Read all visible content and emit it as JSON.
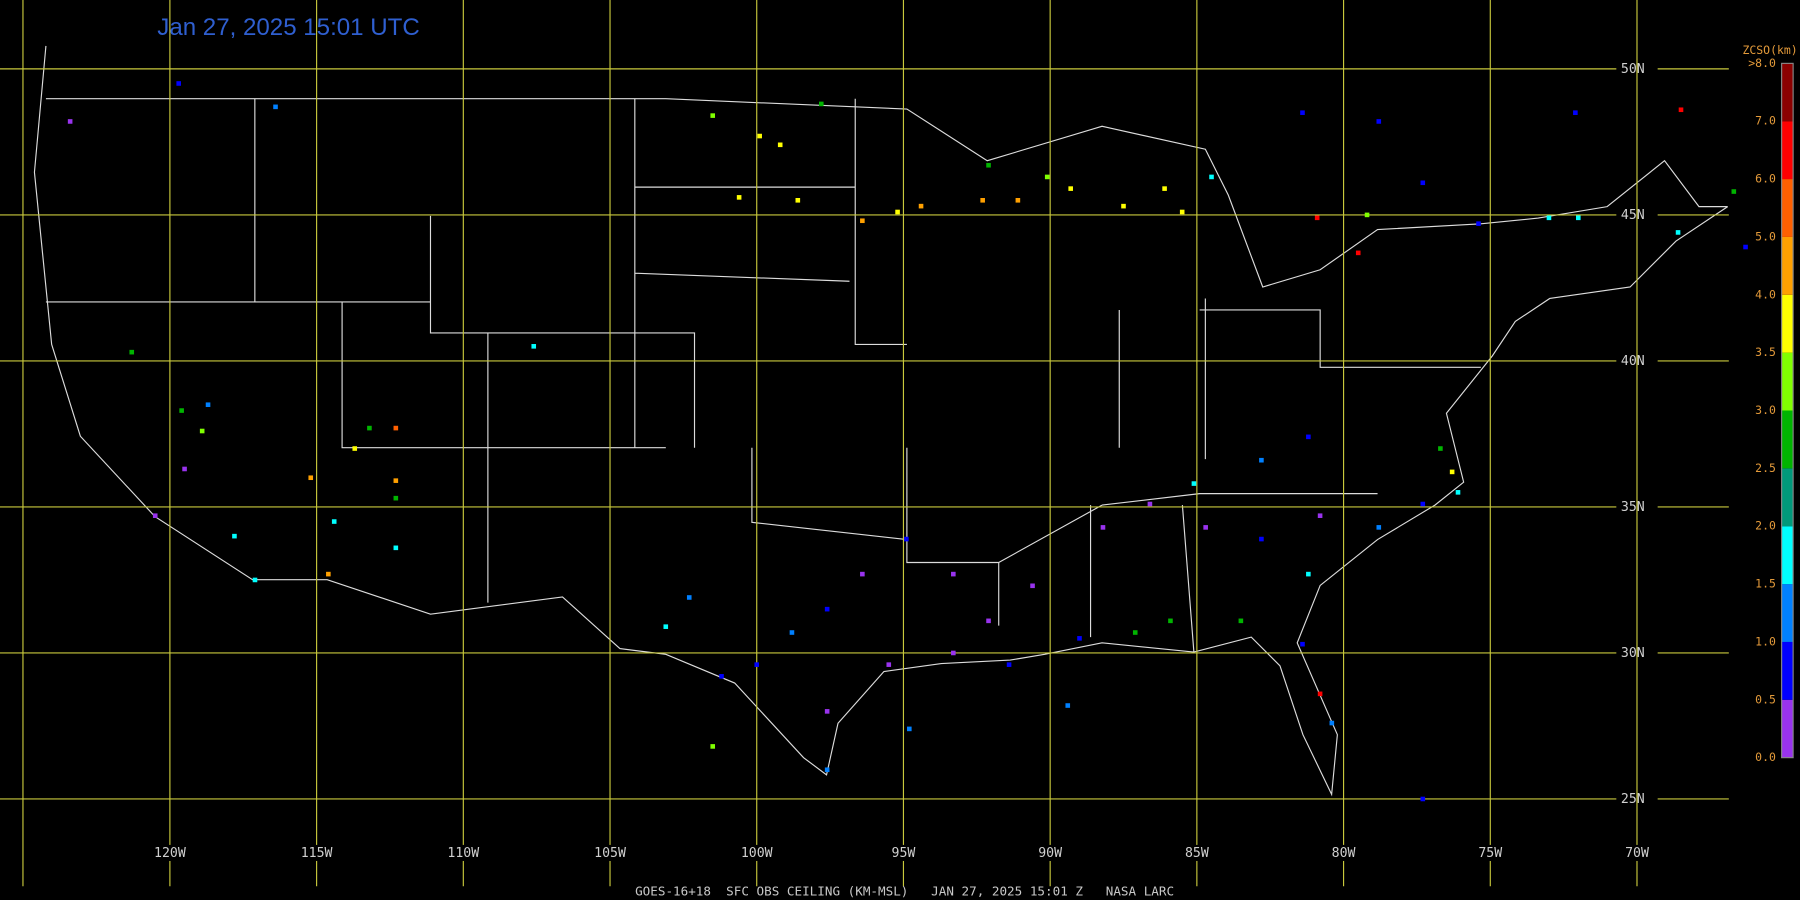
{
  "title": "Jan 27, 2025 15:01 UTC",
  "footer": "GOES-16+18  SFC OBS CEILING (KM-MSL)   JAN 27, 2025 15:01 Z   NASA LARC",
  "grid": {
    "lat_ticks": [
      {
        "value": 50,
        "label": "50N"
      },
      {
        "value": 45,
        "label": "45N"
      },
      {
        "value": 40,
        "label": "40N"
      },
      {
        "value": 35,
        "label": "35N"
      },
      {
        "value": 30,
        "label": "30N"
      },
      {
        "value": 25,
        "label": "25N"
      }
    ],
    "lon_ticks": [
      {
        "value": -120,
        "label": "120W"
      },
      {
        "value": -115,
        "label": "115W"
      },
      {
        "value": -110,
        "label": "110W"
      },
      {
        "value": -105,
        "label": "105W"
      },
      {
        "value": -100,
        "label": "100W"
      },
      {
        "value": -95,
        "label": "95W"
      },
      {
        "value": -90,
        "label": "90W"
      },
      {
        "value": -85,
        "label": "85W"
      },
      {
        "value": -80,
        "label": "80W"
      },
      {
        "value": -75,
        "label": "75W"
      },
      {
        "value": -70,
        "label": "70W"
      }
    ],
    "color": "#c8c83c"
  },
  "colorbar": {
    "title": "ZCSO(km)",
    "levels": [
      {
        "value": 0,
        "label": "0.0"
      },
      {
        "value": 0.5,
        "label": "0.5"
      },
      {
        "value": 1,
        "label": "1.0"
      },
      {
        "value": 1.5,
        "label": "1.5"
      },
      {
        "value": 2,
        "label": "2.0"
      },
      {
        "value": 2.5,
        "label": "2.5"
      },
      {
        "value": 3,
        "label": "3.0"
      },
      {
        "value": 3.5,
        "label": "3.5"
      },
      {
        "value": 4,
        "label": "4.0"
      },
      {
        "value": 5,
        "label": "5.0"
      },
      {
        "value": 6,
        "label": "6.0"
      },
      {
        "value": 7,
        "label": "7.0"
      },
      {
        "value": 8,
        "label": ">8.0"
      }
    ],
    "colors": [
      "#9933ee",
      "#0000ff",
      "#0080ff",
      "#00ffff",
      "#00997a",
      "#00b400",
      "#80ff00",
      "#ffff00",
      "#ffa000",
      "#ff6000",
      "#ff0000",
      "#8b0000"
    ]
  },
  "stations": [
    {
      "lon": -119.7,
      "lat": 49.5,
      "ceiling_km": 0.7
    },
    {
      "lon": -116.4,
      "lat": 48.7,
      "ceiling_km": 1.2
    },
    {
      "lon": -123.4,
      "lat": 48.2,
      "ceiling_km": 0.3
    },
    {
      "lon": -121.3,
      "lat": 40.3,
      "ceiling_km": 2.7
    },
    {
      "lon": -107.6,
      "lat": 40.5,
      "ceiling_km": 1.7
    },
    {
      "lon": -118.7,
      "lat": 38.5,
      "ceiling_km": 1.2
    },
    {
      "lon": -119.6,
      "lat": 38.3,
      "ceiling_km": 2.7
    },
    {
      "lon": -118.9,
      "lat": 37.6,
      "ceiling_km": 3.2
    },
    {
      "lon": -119.5,
      "lat": 36.3,
      "ceiling_km": 0.3
    },
    {
      "lon": -120.5,
      "lat": 34.7,
      "ceiling_km": 0.3
    },
    {
      "lon": -117.8,
      "lat": 34.0,
      "ceiling_km": 1.7
    },
    {
      "lon": -117.1,
      "lat": 32.5,
      "ceiling_km": 1.7
    },
    {
      "lon": -114.6,
      "lat": 32.7,
      "ceiling_km": 4.5
    },
    {
      "lon": -115.2,
      "lat": 36.0,
      "ceiling_km": 4.5
    },
    {
      "lon": -112.3,
      "lat": 37.7,
      "ceiling_km": 5.5
    },
    {
      "lon": -113.2,
      "lat": 37.7,
      "ceiling_km": 2.7
    },
    {
      "lon": -113.7,
      "lat": 37.0,
      "ceiling_km": 3.7
    },
    {
      "lon": -112.3,
      "lat": 35.9,
      "ceiling_km": 4.5
    },
    {
      "lon": -112.3,
      "lat": 35.3,
      "ceiling_km": 2.7
    },
    {
      "lon": -112.3,
      "lat": 33.6,
      "ceiling_km": 1.7
    },
    {
      "lon": -114.4,
      "lat": 34.5,
      "ceiling_km": 1.7
    },
    {
      "lon": -101.5,
      "lat": 48.4,
      "ceiling_km": 3.2
    },
    {
      "lon": -99.9,
      "lat": 47.7,
      "ceiling_km": 3.7
    },
    {
      "lon": -99.2,
      "lat": 47.4,
      "ceiling_km": 3.7
    },
    {
      "lon": -97.8,
      "lat": 48.8,
      "ceiling_km": 2.7
    },
    {
      "lon": -100.6,
      "lat": 45.6,
      "ceiling_km": 3.7
    },
    {
      "lon": -98.6,
      "lat": 45.5,
      "ceiling_km": 3.7
    },
    {
      "lon": -96.4,
      "lat": 44.8,
      "ceiling_km": 4.5
    },
    {
      "lon": -95.2,
      "lat": 45.1,
      "ceiling_km": 3.7
    },
    {
      "lon": -94.4,
      "lat": 45.3,
      "ceiling_km": 4.5
    },
    {
      "lon": -92.3,
      "lat": 45.5,
      "ceiling_km": 4.5
    },
    {
      "lon": -91.1,
      "lat": 45.5,
      "ceiling_km": 4.5
    },
    {
      "lon": -92.1,
      "lat": 46.7,
      "ceiling_km": 2.7
    },
    {
      "lon": -90.1,
      "lat": 46.3,
      "ceiling_km": 3.2
    },
    {
      "lon": -89.3,
      "lat": 45.9,
      "ceiling_km": 3.7
    },
    {
      "lon": -87.5,
      "lat": 45.3,
      "ceiling_km": 3.7
    },
    {
      "lon": -86.1,
      "lat": 45.9,
      "ceiling_km": 3.7
    },
    {
      "lon": -84.5,
      "lat": 46.3,
      "ceiling_km": 1.7
    },
    {
      "lon": -85.5,
      "lat": 45.1,
      "ceiling_km": 3.7
    },
    {
      "lon": -80.9,
      "lat": 44.9,
      "ceiling_km": 6.5
    },
    {
      "lon": -79.5,
      "lat": 43.7,
      "ceiling_km": 6.5
    },
    {
      "lon": -79.2,
      "lat": 45.0,
      "ceiling_km": 3.2
    },
    {
      "lon": -77.3,
      "lat": 46.1,
      "ceiling_km": 0.7
    },
    {
      "lon": -75.4,
      "lat": 44.7,
      "ceiling_km": 0.7
    },
    {
      "lon": -73.0,
      "lat": 44.9,
      "ceiling_km": 1.7
    },
    {
      "lon": -72.0,
      "lat": 44.9,
      "ceiling_km": 1.7
    },
    {
      "lon": -68.5,
      "lat": 48.6,
      "ceiling_km": 6.5
    },
    {
      "lon": -66.7,
      "lat": 45.8,
      "ceiling_km": 2.7
    },
    {
      "lon": -68.6,
      "lat": 44.4,
      "ceiling_km": 1.7
    },
    {
      "lon": -81.4,
      "lat": 48.5,
      "ceiling_km": 0.7
    },
    {
      "lon": -78.8,
      "lat": 48.2,
      "ceiling_km": 0.7
    },
    {
      "lon": -72.1,
      "lat": 48.5,
      "ceiling_km": 0.7
    },
    {
      "lon": -76.7,
      "lat": 37.0,
      "ceiling_km": 2.7
    },
    {
      "lon": -76.3,
      "lat": 36.2,
      "ceiling_km": 3.7
    },
    {
      "lon": -76.1,
      "lat": 35.5,
      "ceiling_km": 1.7
    },
    {
      "lon": -81.2,
      "lat": 37.4,
      "ceiling_km": 0.7
    },
    {
      "lon": -82.8,
      "lat": 36.6,
      "ceiling_km": 1.2
    },
    {
      "lon": -85.1,
      "lat": 35.8,
      "ceiling_km": 1.7
    },
    {
      "lon": -86.6,
      "lat": 35.1,
      "ceiling_km": 0.3
    },
    {
      "lon": -88.2,
      "lat": 34.3,
      "ceiling_km": 0.3
    },
    {
      "lon": -84.7,
      "lat": 34.3,
      "ceiling_km": 0.3
    },
    {
      "lon": -82.8,
      "lat": 33.9,
      "ceiling_km": 0.7
    },
    {
      "lon": -80.8,
      "lat": 34.7,
      "ceiling_km": 0.3
    },
    {
      "lon": -78.8,
      "lat": 34.3,
      "ceiling_km": 1.2
    },
    {
      "lon": -77.3,
      "lat": 35.1,
      "ceiling_km": 0.7
    },
    {
      "lon": -81.2,
      "lat": 32.7,
      "ceiling_km": 1.7
    },
    {
      "lon": -83.5,
      "lat": 31.1,
      "ceiling_km": 2.7
    },
    {
      "lon": -85.9,
      "lat": 31.1,
      "ceiling_km": 2.7
    },
    {
      "lon": -87.1,
      "lat": 30.7,
      "ceiling_km": 2.7
    },
    {
      "lon": -89.0,
      "lat": 30.5,
      "ceiling_km": 0.7
    },
    {
      "lon": -90.6,
      "lat": 32.3,
      "ceiling_km": 0.3
    },
    {
      "lon": -92.1,
      "lat": 31.1,
      "ceiling_km": 0.3
    },
    {
      "lon": -93.3,
      "lat": 32.7,
      "ceiling_km": 0.3
    },
    {
      "lon": -94.9,
      "lat": 33.9,
      "ceiling_km": 0.7
    },
    {
      "lon": -96.4,
      "lat": 32.7,
      "ceiling_km": 0.3
    },
    {
      "lon": -97.6,
      "lat": 31.5,
      "ceiling_km": 0.7
    },
    {
      "lon": -98.8,
      "lat": 30.7,
      "ceiling_km": 1.2
    },
    {
      "lon": -100.0,
      "lat": 29.6,
      "ceiling_km": 0.7
    },
    {
      "lon": -101.2,
      "lat": 29.2,
      "ceiling_km": 0.7
    },
    {
      "lon": -102.3,
      "lat": 31.9,
      "ceiling_km": 1.2
    },
    {
      "lon": -103.1,
      "lat": 30.9,
      "ceiling_km": 1.7
    },
    {
      "lon": -101.5,
      "lat": 26.8,
      "ceiling_km": 3.2
    },
    {
      "lon": -97.6,
      "lat": 28.0,
      "ceiling_km": 0.3
    },
    {
      "lon": -97.6,
      "lat": 26.0,
      "ceiling_km": 1.2
    },
    {
      "lon": -95.5,
      "lat": 29.6,
      "ceiling_km": 0.3
    },
    {
      "lon": -93.3,
      "lat": 30.0,
      "ceiling_km": 0.3
    },
    {
      "lon": -91.4,
      "lat": 29.6,
      "ceiling_km": 0.7
    },
    {
      "lon": -89.4,
      "lat": 28.2,
      "ceiling_km": 1.2
    },
    {
      "lon": -94.8,
      "lat": 27.4,
      "ceiling_km": 1.2
    },
    {
      "lon": -80.8,
      "lat": 28.6,
      "ceiling_km": 6.5
    },
    {
      "lon": -80.4,
      "lat": 27.6,
      "ceiling_km": 1.2
    },
    {
      "lon": -81.4,
      "lat": 30.3,
      "ceiling_km": 0.7
    },
    {
      "lon": -77.3,
      "lat": 25.0,
      "ceiling_km": 0.7
    },
    {
      "lon": -66.3,
      "lat": 43.9,
      "ceiling_km": 0.7
    }
  ]
}
